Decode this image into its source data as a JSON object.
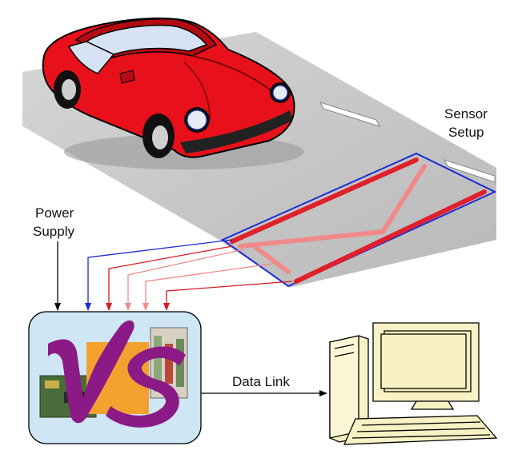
{
  "labels": {
    "sensor_setup_line1": "Sensor",
    "sensor_setup_line2": "Setup",
    "power_supply_line1": "Power",
    "power_supply_line2": "Supply",
    "data_link": "Data Link",
    "logo_text": "VS"
  },
  "colors": {
    "road": "#c9c9c9",
    "car": "#e8101a",
    "sensor_outline": "#1a2bd6",
    "sensor_strip": "#e0202a",
    "sensor_strip_faded": "#f08a8a",
    "power_line": "#000000",
    "controller_bg": "#cfe6f5",
    "logo_purple": "#8b1a86",
    "logo_orange": "#f4a130",
    "computer": "#f8f1c4"
  },
  "icons": {
    "car": "sports-car-illustration",
    "controller": "vs-controller-box",
    "computer": "desktop-computer-icon"
  }
}
